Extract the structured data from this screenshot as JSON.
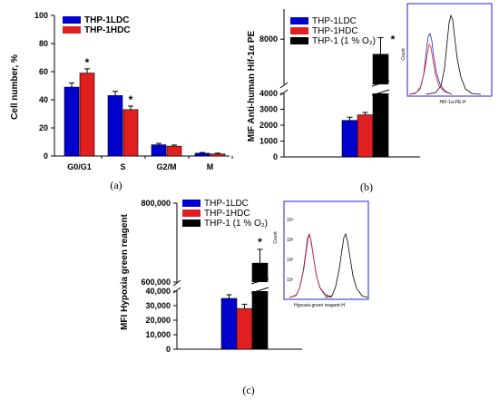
{
  "colors": {
    "ldc": "#0000cc",
    "hdc": "#e02020",
    "hyp": "#000000",
    "inset_frame": "#2222cc"
  },
  "chart_data": [
    {
      "id": "a",
      "type": "bar",
      "panel_label": "(a)",
      "categories": [
        "G0/G1",
        "S",
        "G2/M",
        "M"
      ],
      "ylabel": "Cell number, %",
      "xlabel": "",
      "ylim": [
        0,
        100
      ],
      "yticks": [
        0,
        20,
        40,
        60,
        80,
        100
      ],
      "legend_position": "top-left",
      "series": [
        {
          "name": "THP-1LDC",
          "values": [
            49,
            43,
            8,
            2
          ],
          "errors": [
            3,
            3,
            1,
            0.5
          ],
          "stars": [
            "",
            "",
            "",
            ""
          ]
        },
        {
          "name": "THP-1HDC",
          "values": [
            59,
            33,
            7,
            1.5
          ],
          "errors": [
            3,
            2.5,
            0.8,
            0.5
          ],
          "stars": [
            "*",
            "*",
            "",
            ""
          ]
        }
      ]
    },
    {
      "id": "b",
      "type": "bar",
      "panel_label": "(b)",
      "ylabel": "MIF Anti-human Hif-1α PE",
      "xlabel": "",
      "lower_ticks": [
        0,
        1000,
        2000,
        3000,
        4000
      ],
      "upper_ticks": [
        8000
      ],
      "axis_break": [
        4000,
        5000
      ],
      "ylim": [
        0,
        10000
      ],
      "legend_position": "top-left",
      "series": [
        {
          "name": "THP-1LDC",
          "values": [
            2300
          ],
          "errors": [
            200
          ],
          "star": ""
        },
        {
          "name": "THP-1HDC",
          "values": [
            2650
          ],
          "errors": [
            150
          ],
          "star": ""
        },
        {
          "name": "THP-1 (1 % O₂)",
          "values": [
            7000
          ],
          "errors": [
            1100
          ],
          "star": "*"
        }
      ],
      "inset": {
        "xlabel": "HIF-1a-PE-H",
        "ylabel": "Count"
      }
    },
    {
      "id": "c",
      "type": "bar",
      "panel_label": "(c)",
      "ylabel": "MFI Hypoxia green reagent",
      "xlabel": "",
      "lower_ticks": [
        0,
        10000,
        20000,
        30000,
        40000
      ],
      "upper_ticks": [
        600000,
        800000
      ],
      "tick_labels": [
        "0",
        "10,000",
        "20,000",
        "30,000",
        "40,000",
        "600,000",
        "800,000"
      ],
      "axis_break": [
        40000,
        600000
      ],
      "ylim": [
        0,
        800000
      ],
      "legend_position": "top-left",
      "series": [
        {
          "name": "THP-1LDC",
          "values": [
            35000
          ],
          "errors": [
            2500
          ],
          "star": ""
        },
        {
          "name": "THP-1HDC",
          "values": [
            28000
          ],
          "errors": [
            3000
          ],
          "star": ""
        },
        {
          "name": "THP-1 (1 % O₂)",
          "values": [
            648000
          ],
          "errors": [
            35000
          ],
          "star": "*"
        }
      ],
      "inset": {
        "xlabel": "Hypoxia green reagent-H",
        "ylabel": "Count",
        "yticks": [
          "10¹",
          "10²",
          "10³",
          "10⁴"
        ]
      }
    }
  ]
}
